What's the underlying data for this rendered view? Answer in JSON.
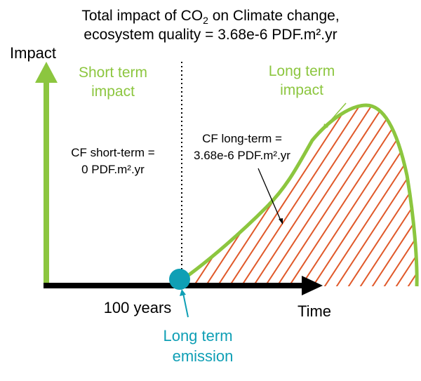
{
  "title": {
    "line1_prefix": "Total impact of CO",
    "line1_subscript": "2",
    "line1_suffix": " on Climate change,",
    "line2": "ecosystem quality = 3.68e-6 PDF.m².yr"
  },
  "axes": {
    "y_label": "Impact",
    "x_label": "Time",
    "x_marker_label": "100 years"
  },
  "short_term": {
    "label_line1": "Short term",
    "label_line2": "impact",
    "cf_line1": "CF short-term =",
    "cf_line2": "0 PDF.m².yr"
  },
  "long_term": {
    "label_line1": "Long term",
    "label_line2": "impact",
    "cf_line1": "CF long-term =",
    "cf_line2": "3.68e-6 PDF.m².yr"
  },
  "emission": {
    "label_line1": "Long term",
    "label_line2": "emission"
  },
  "colors": {
    "green": "#8cc63f",
    "teal": "#0f9fb5",
    "hatch": "#e0592a",
    "axis": "#000000"
  }
}
